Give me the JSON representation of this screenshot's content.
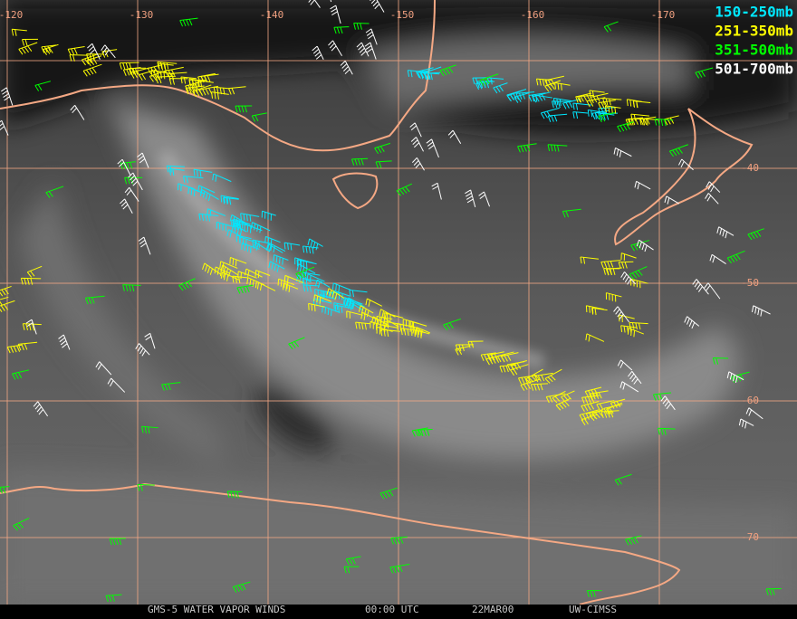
{
  "map": {
    "longitude_labels": [
      "-120",
      "-130",
      "-140",
      "-150",
      "-160",
      "-170"
    ],
    "latitude_labels": [
      "-40",
      "-50",
      "-60",
      "-70"
    ],
    "legend": [
      {
        "label": "150-250mb",
        "color": "#00e8ff"
      },
      {
        "label": "251-350mb",
        "color": "#ffff00"
      },
      {
        "label": "351-500mb",
        "color": "#00ff00"
      },
      {
        "label": "501-700mb",
        "color": "#ffffff"
      }
    ],
    "footer": [
      "GMS-5 WATER VAPOR WINDS",
      "00:00 UTC",
      "22MAR00",
      "UW-CIMSS"
    ]
  }
}
